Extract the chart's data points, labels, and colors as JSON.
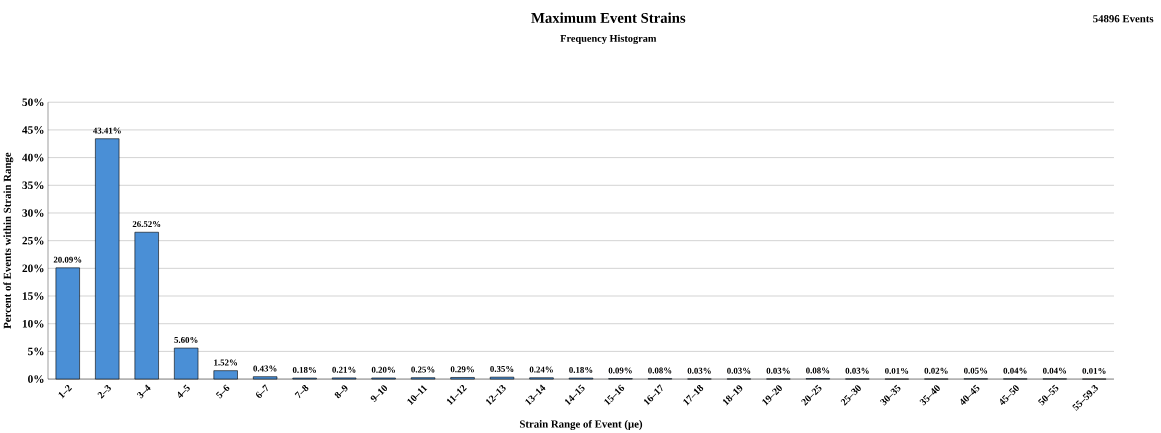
{
  "chart_data": {
    "type": "bar",
    "title": "Maximum  Event Strains",
    "subtitle": "Frequency  Histogram",
    "xlabel": "Strain  Range of Event (µe)",
    "ylabel": "Percent  of Events within  Strain  Range",
    "annotations": [
      "54896 Events"
    ],
    "categories": [
      "1–2",
      "2–3",
      "3–4",
      "4–5",
      "5–6",
      "6–7",
      "7–8",
      "8–9",
      "9–10",
      "10–11",
      "11–12",
      "12–13",
      "13–14",
      "14–15",
      "15–16",
      "16–17",
      "17–18",
      "18–19",
      "19–20",
      "20–25",
      "25–30",
      "30–35",
      "35–40",
      "40–45",
      "45–50",
      "50–55",
      "55–59.3"
    ],
    "values": [
      20.09,
      43.41,
      26.52,
      5.6,
      1.52,
      0.43,
      0.18,
      0.21,
      0.2,
      0.25,
      0.29,
      0.35,
      0.24,
      0.18,
      0.09,
      0.08,
      0.03,
      0.03,
      0.03,
      0.08,
      0.03,
      0.01,
      0.02,
      0.05,
      0.04,
      0.04,
      0.01
    ],
    "value_labels": [
      "20.09%",
      "43.41%",
      "26.52%",
      "5.60%",
      "1.52%",
      "0.43%",
      "0.18%",
      "0.21%",
      "0.20%",
      "0.25%",
      "0.29%",
      "0.35%",
      "0.24%",
      "0.18%",
      "0.09%",
      "0.08%",
      "0.03%",
      "0.03%",
      "0.03%",
      "0.08%",
      "0.03%",
      "0.01%",
      "0.02%",
      "0.05%",
      "0.04%",
      "0.04%",
      "0.01%"
    ],
    "color": "#4a8fd6",
    "ylim": [
      0,
      50
    ],
    "yticks": [
      {
        "value": 0,
        "label": "0%"
      },
      {
        "value": 5,
        "label": "5%"
      },
      {
        "value": 10,
        "label": "10%"
      },
      {
        "value": 15,
        "label": "15%"
      },
      {
        "value": 20,
        "label": "20%"
      },
      {
        "value": 25,
        "label": "25%"
      },
      {
        "value": 30,
        "label": "30%"
      },
      {
        "value": 35,
        "label": "35%"
      },
      {
        "value": 40,
        "label": "40%"
      },
      {
        "value": 45,
        "label": "45%"
      },
      {
        "value": 50,
        "label": "50%"
      }
    ],
    "grid": "y"
  }
}
